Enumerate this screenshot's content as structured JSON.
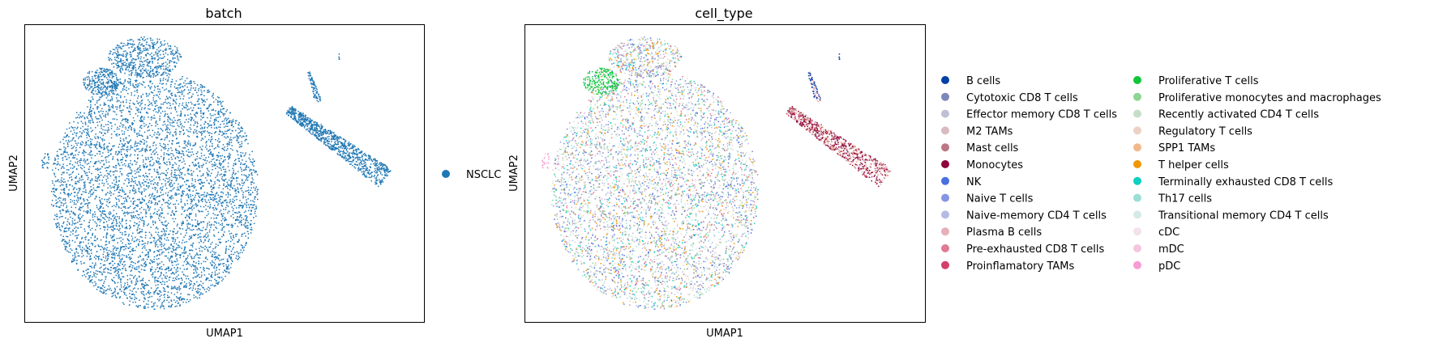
{
  "figure": "UMAP embedding panels",
  "colors": {
    "batch_point": "#1f77b4",
    "cell_type_palette": {
      "B cells": "#023fa5",
      "Cytotoxic CD8 T cells": "#7d87b9",
      "Effector memory CD8 T cells": "#bec1d4",
      "M2 TAMs": "#d6bcc0",
      "Mast cells": "#bb7784",
      "Monocytes": "#8e063b",
      "NK": "#4a6fe3",
      "Naive T cells": "#8595e1",
      "Naive-memory CD4 T cells": "#b5bbe3",
      "Plasma B cells": "#e6afb9",
      "Pre-exhausted CD8 T cells": "#e07b91",
      "Proinflamatory TAMs": "#d33f6a",
      "Proliferative T cells": "#11c638",
      "Proliferative monocytes and macrophages": "#8dd593",
      "Recently activated CD4 T cells": "#c6dec7",
      "Regulatory T cells": "#ead3c6",
      "SPP1 TAMs": "#f0b98d",
      "T helper cells": "#ef9708",
      "Terminally exhausted CD8 T cells": "#0fcfc0",
      "Th17 cells": "#9cded6",
      "Transitional memory CD4 T cells": "#d5eae7",
      "cDC": "#f3e1eb",
      "mDC": "#f6c4e1",
      "pDC": "#f79cd4"
    }
  },
  "chart_data": [
    {
      "type": "scatter",
      "title": "batch",
      "xlabel": "UMAP1",
      "ylabel": "UMAP2",
      "ticks": "none",
      "legend": {
        "placement": "right",
        "entries": [
          "NSCLC"
        ]
      },
      "series": [
        {
          "name": "NSCLC",
          "color": "#1f77b4",
          "clusters": [
            "main-cluster",
            "upper-left-lobe",
            "left-satellite",
            "right-myeloid-arm"
          ]
        }
      ]
    },
    {
      "type": "scatter",
      "title": "cell_type",
      "xlabel": "UMAP1",
      "ylabel": "UMAP2",
      "ticks": "none",
      "legend": {
        "placement": "right",
        "columns": 2,
        "entries": [
          "B cells",
          "Cytotoxic CD8 T cells",
          "Effector memory CD8 T cells",
          "M2 TAMs",
          "Mast cells",
          "Monocytes",
          "NK",
          "Naive T cells",
          "Naive-memory CD4 T cells",
          "Plasma B cells",
          "Pre-exhausted CD8 T cells",
          "Proinflamatory TAMs",
          "Proliferative T cells",
          "Proliferative monocytes and macrophages",
          "Recently activated CD4 T cells",
          "Regulatory T cells",
          "SPP1 TAMs",
          "T helper cells",
          "Terminally exhausted CD8 T cells",
          "Th17 cells",
          "Transitional memory CD4 T cells",
          "cDC",
          "mDC",
          "pDC"
        ]
      }
    }
  ],
  "legend_batch": {
    "label": "NSCLC"
  }
}
